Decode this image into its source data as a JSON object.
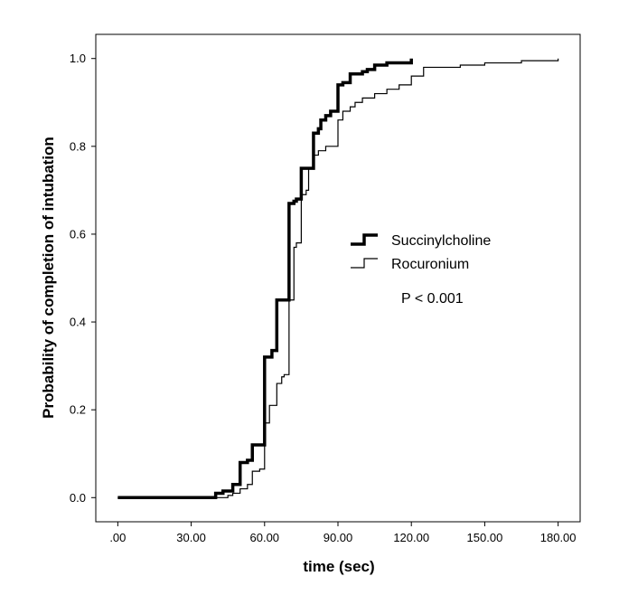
{
  "chart_data": {
    "type": "line",
    "title": "",
    "xlabel": "time (sec)",
    "ylabel": "Probability of completion of intubation",
    "xlim": [
      -9,
      189
    ],
    "ylim": [
      -0.055,
      1.055
    ],
    "x_ticks": [
      0,
      30,
      60,
      90,
      120,
      150,
      180
    ],
    "x_tick_labels": [
      ".00",
      "30.00",
      "60.00",
      "90.00",
      "120.00",
      "150.00",
      "180.00"
    ],
    "y_ticks": [
      0,
      0.2,
      0.4,
      0.6,
      0.8,
      1.0
    ],
    "y_tick_labels": [
      "0.0",
      "0.2",
      "0.4",
      "0.6",
      "0.8",
      "1.0"
    ],
    "grid": false,
    "legend_position": "center-right",
    "annotation": "P < 0.001",
    "series": [
      {
        "name": "Succinylcholine",
        "style": "thick",
        "color": "#000000",
        "x": [
          0,
          40,
          43,
          47,
          50,
          53,
          55,
          60,
          63,
          65,
          70,
          72,
          73,
          75,
          80,
          82,
          83,
          85,
          87,
          90,
          92,
          95,
          100,
          102,
          105,
          110,
          115,
          120
        ],
        "y": [
          0,
          0.01,
          0.015,
          0.03,
          0.08,
          0.085,
          0.12,
          0.32,
          0.335,
          0.45,
          0.67,
          0.675,
          0.68,
          0.75,
          0.83,
          0.84,
          0.86,
          0.87,
          0.88,
          0.94,
          0.945,
          0.965,
          0.97,
          0.975,
          0.985,
          0.99,
          0.99,
          1.0
        ]
      },
      {
        "name": "Rocuronium",
        "style": "thin",
        "color": "#000000",
        "x": [
          0,
          45,
          47,
          50,
          53,
          55,
          58,
          60,
          62,
          65,
          67,
          68,
          70,
          72,
          73,
          75,
          77,
          78,
          80,
          82,
          85,
          90,
          92,
          95,
          97,
          100,
          105,
          110,
          115,
          120,
          125,
          140,
          150,
          165,
          175,
          180
        ],
        "y": [
          0,
          0.005,
          0.01,
          0.02,
          0.03,
          0.06,
          0.065,
          0.17,
          0.21,
          0.26,
          0.275,
          0.28,
          0.45,
          0.57,
          0.58,
          0.69,
          0.7,
          0.75,
          0.78,
          0.79,
          0.8,
          0.86,
          0.88,
          0.89,
          0.9,
          0.91,
          0.92,
          0.93,
          0.94,
          0.96,
          0.98,
          0.985,
          0.99,
          0.995,
          0.995,
          1.0
        ]
      }
    ]
  }
}
